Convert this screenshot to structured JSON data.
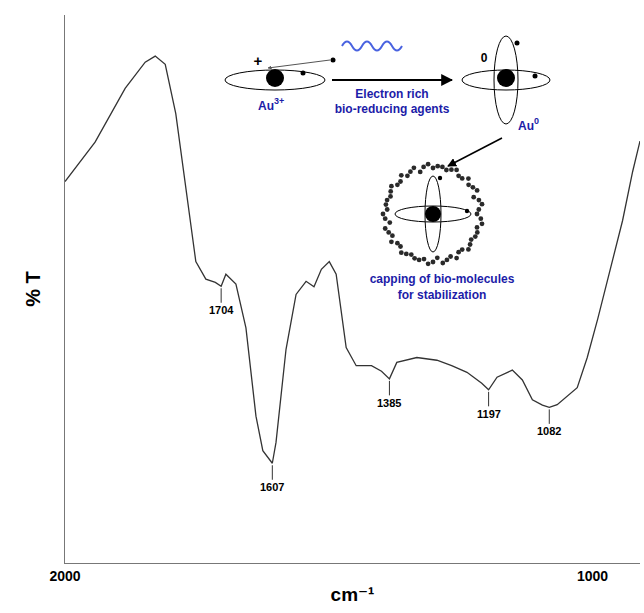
{
  "chart_data": {
    "type": "line",
    "x_label": "cm⁻¹",
    "y_label": "% T",
    "x": [
      2000,
      1943,
      1886,
      1848,
      1829,
      1810,
      1790,
      1771,
      1752,
      1733,
      1715,
      1704,
      1695,
      1676,
      1657,
      1638,
      1625,
      1607,
      1600,
      1581,
      1562,
      1543,
      1528,
      1514,
      1499,
      1486,
      1467,
      1448,
      1419,
      1400,
      1385,
      1371,
      1333,
      1295,
      1267,
      1238,
      1210,
      1197,
      1181,
      1152,
      1133,
      1114,
      1095,
      1082,
      1067,
      1029,
      1010,
      990,
      962,
      943,
      924,
      910
    ],
    "values": [
      69.6,
      76.8,
      86.6,
      91.4,
      92.5,
      91,
      82,
      68,
      55,
      51.8,
      51.2,
      50.5,
      52.7,
      50.9,
      42.9,
      26.8,
      20.5,
      18.2,
      22,
      39,
      49,
      51.4,
      50.4,
      53.6,
      55,
      52.7,
      39.3,
      36,
      36,
      35,
      33.6,
      36.6,
      37.5,
      37,
      36,
      34.8,
      32.8,
      31.6,
      33.9,
      35.2,
      33.4,
      29.8,
      28.8,
      28.4,
      28.9,
      32,
      37.5,
      44.6,
      55,
      62.5,
      71.4,
      77
    ],
    "color": "#333333",
    "xlim": [
      2000,
      910
    ],
    "xticks": [
      2000,
      1000
    ],
    "ylim": [
      0,
      100
    ],
    "yticks": [],
    "tick_labels": "x",
    "grid": false,
    "peaks": [
      1704,
      1607,
      1385,
      1197,
      1082
    ]
  },
  "diagram": {
    "ion": {
      "symbol": "Au",
      "charge": "3+"
    },
    "ion_sign": "+",
    "reducer": [
      "Electron rich",
      "bio-reducing agents"
    ],
    "atom": {
      "symbol": "Au",
      "charge": "0"
    },
    "atom_sign": "0",
    "capping": [
      "capping of bio-molecules",
      "for stabilization"
    ]
  }
}
